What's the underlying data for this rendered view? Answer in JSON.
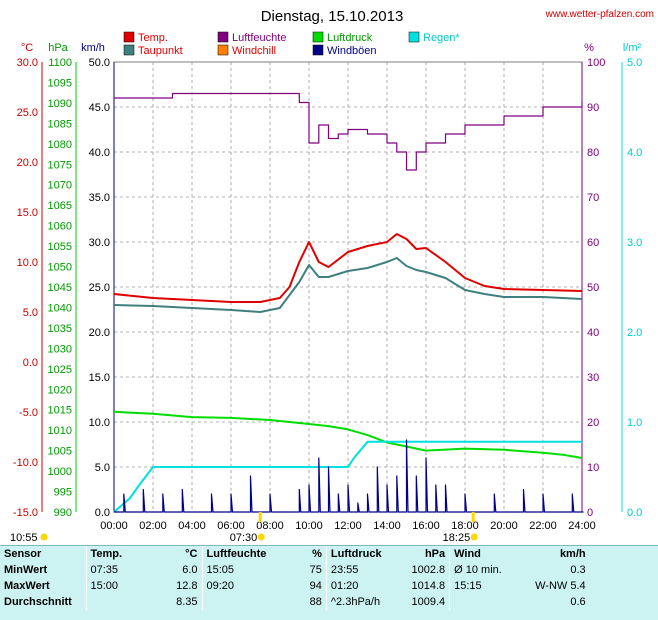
{
  "header": {
    "title": "Dienstag, 15.10.2013",
    "site": "www.wetter-pfalzen.com"
  },
  "legend": [
    {
      "label": "Temp.",
      "color": "#e00000"
    },
    {
      "label": "Luftfeuchte",
      "color": "#800080"
    },
    {
      "label": "Luftdruck",
      "color": "#00dd00"
    },
    {
      "label": "Regen*",
      "color": "#00e0e0"
    },
    {
      "label": "Taupunkt",
      "color": "#3f7f7f"
    },
    {
      "label": "Windchill",
      "color": "#ff8000"
    },
    {
      "label": "Windböen",
      "color": "#00008b"
    }
  ],
  "axes": {
    "units": {
      "temp": "°C",
      "pressure": "hPa",
      "wind": "km/h",
      "humidity": "%",
      "rain": "l/m²"
    },
    "temp_ticks": [
      "30.0",
      "25.0",
      "20.0",
      "15.0",
      "10.0",
      "5.0",
      "0.0",
      "-5.0",
      "-10.0",
      "-15.0"
    ],
    "temp_range": [
      -15,
      30
    ],
    "pressure_ticks": [
      "1100",
      "1095",
      "1090",
      "1085",
      "1080",
      "1075",
      "1070",
      "1065",
      "1060",
      "1055",
      "1050",
      "1045",
      "1040",
      "1035",
      "1030",
      "1025",
      "1020",
      "1015",
      "1010",
      "1005",
      "1000",
      "995",
      "990"
    ],
    "pressure_range": [
      990,
      1100
    ],
    "wind_ticks": [
      "50.0",
      "45.0",
      "40.0",
      "35.0",
      "30.0",
      "25.0",
      "20.0",
      "15.0",
      "10.0",
      "5.0",
      "0.0"
    ],
    "wind_range": [
      0,
      50
    ],
    "humidity_ticks": [
      "100",
      "90",
      "80",
      "70",
      "60",
      "50",
      "40",
      "30",
      "20",
      "10",
      "0"
    ],
    "humidity_range": [
      0,
      100
    ],
    "rain_ticks": [
      "5.0",
      "4.0",
      "3.0",
      "2.0",
      "1.0",
      "0.0"
    ],
    "rain_range": [
      0,
      5
    ],
    "time_ticks": [
      "00:00",
      "02:00",
      "04:00",
      "06:00",
      "08:00",
      "10:00",
      "12:00",
      "14:00",
      "16:00",
      "18:00",
      "20:00",
      "22:00",
      "24:00"
    ],
    "time_range_h": [
      0,
      24
    ]
  },
  "sun": {
    "sunrise_label": "07:30",
    "sunrise_h": 7.5,
    "sunset_label": "18:25",
    "sunset_h": 18.42,
    "daylight_label": "10:55"
  },
  "chart_data": {
    "type": "line",
    "x_unit": "hour of day",
    "series": [
      {
        "name": "Temp.",
        "axis": "temp",
        "color": "#e00000",
        "x": [
          0,
          2,
          4,
          6,
          7.5,
          8.5,
          9,
          9.5,
          10,
          10.5,
          11,
          12,
          13,
          14,
          14.5,
          15,
          15.5,
          16,
          17,
          18,
          19,
          20,
          22,
          24
        ],
        "y": [
          6.8,
          6.4,
          6.2,
          6.0,
          6.0,
          6.4,
          7.5,
          10.0,
          12.0,
          10.0,
          9.5,
          11.0,
          11.6,
          12.0,
          12.8,
          12.3,
          11.3,
          11.4,
          10.0,
          8.4,
          7.6,
          7.3,
          7.2,
          7.1
        ]
      },
      {
        "name": "Taupunkt",
        "axis": "temp",
        "color": "#3f7f7f",
        "x": [
          0,
          2,
          4,
          6,
          7.5,
          8.5,
          9.5,
          10,
          10.5,
          11,
          12,
          13,
          14,
          14.5,
          15,
          15.5,
          16,
          17,
          18,
          19,
          20,
          22,
          24
        ],
        "y": [
          5.7,
          5.6,
          5.4,
          5.2,
          5.0,
          5.4,
          8.0,
          9.7,
          8.5,
          8.5,
          9.1,
          9.4,
          10.0,
          10.4,
          9.6,
          9.2,
          9.0,
          8.4,
          7.2,
          6.8,
          6.5,
          6.5,
          6.3
        ]
      },
      {
        "name": "Luftfeuchte",
        "axis": "humidity",
        "color": "#800080",
        "x": [
          0,
          3,
          5,
          8,
          9.5,
          10,
          10.5,
          11,
          11.5,
          12,
          13,
          14,
          14.5,
          15,
          15.5,
          16,
          17,
          18,
          20,
          22,
          24
        ],
        "y": [
          92,
          93,
          93,
          93,
          91,
          82,
          86,
          83,
          84,
          85,
          84,
          82,
          80,
          76,
          80,
          82,
          84,
          86,
          88,
          90,
          91
        ]
      },
      {
        "name": "Luftdruck",
        "axis": "pressure",
        "color": "#00dd00",
        "x": [
          0,
          2,
          4,
          6,
          8,
          10,
          11,
          12,
          13,
          14,
          15,
          16,
          18,
          20,
          22,
          23,
          24
        ],
        "y": [
          1014.5,
          1014.0,
          1013.2,
          1013.0,
          1012.5,
          1011.5,
          1011.0,
          1010.2,
          1008.8,
          1007.0,
          1006.0,
          1005.0,
          1005.5,
          1005.2,
          1004.5,
          1004.0,
          1003.2
        ]
      },
      {
        "name": "Regen*",
        "axis": "rain",
        "color": "#00e0e0",
        "x": [
          0,
          0.8,
          1.3,
          2,
          3,
          4,
          6,
          8,
          10,
          12,
          12.3,
          13,
          14,
          15,
          16,
          18,
          20,
          22,
          24
        ],
        "y": [
          0,
          0.15,
          0.3,
          0.5,
          0.5,
          0.5,
          0.5,
          0.5,
          0.5,
          0.5,
          0.6,
          0.78,
          0.78,
          0.78,
          0.78,
          0.78,
          0.78,
          0.78,
          0.78
        ]
      },
      {
        "name": "Windböen",
        "axis": "wind",
        "color": "#00008b",
        "x": [
          0,
          0.5,
          1,
          1.5,
          2,
          2.5,
          3,
          3.5,
          4,
          4.5,
          5,
          5.5,
          6,
          6.5,
          7,
          7.5,
          8,
          8.5,
          9,
          9.5,
          10,
          10.5,
          11,
          11.5,
          12,
          12.5,
          13,
          13.5,
          14,
          14.5,
          15,
          15.5,
          16,
          16.5,
          17,
          17.5,
          18,
          18.5,
          19,
          19.5,
          20,
          20.5,
          21,
          21.5,
          22,
          22.5,
          23,
          23.5,
          24
        ],
        "y": [
          0,
          2,
          0,
          2.5,
          0,
          2,
          0,
          2.5,
          0,
          0,
          2,
          0,
          2,
          0,
          4,
          0,
          2,
          0,
          0,
          2.5,
          3,
          6,
          5,
          2,
          3,
          1,
          2,
          5,
          3,
          4,
          8,
          4,
          6,
          3,
          3,
          0,
          2,
          0,
          0,
          2,
          0,
          0,
          2.5,
          0,
          2,
          0,
          0,
          2,
          0
        ]
      }
    ]
  },
  "stats": {
    "headers": {
      "sensor": "Sensor",
      "temp": "Temp.",
      "temp_unit": "°C",
      "hum": "Luftfeuchte",
      "hum_unit": "%",
      "pres": "Luftdruck",
      "pres_unit": "hPa",
      "wind": "Wind",
      "wind_unit": "km/h"
    },
    "rows": [
      {
        "label": "MinWert",
        "t_time": "07:35",
        "t_val": "6.0",
        "h_time": "15:05",
        "h_val": "75",
        "p_time": "23:55",
        "p_val": "1002.8",
        "w_label": "Ø 10 min.",
        "w_val": "0.3"
      },
      {
        "label": "MaxWert",
        "t_time": "15:00",
        "t_val": "12.8",
        "h_time": "09:20",
        "h_val": "94",
        "p_time": "01:20",
        "p_val": "1014.8",
        "w_label": "15:15",
        "w_val": "W-NW 5.4"
      },
      {
        "label": "Durchschnitt",
        "t_time": "",
        "t_val": "8.35",
        "h_time": "",
        "h_val": "88",
        "p_time": "^2.3hPa/h",
        "p_val": "1009.4",
        "w_label": "",
        "w_val": "0.6"
      }
    ]
  }
}
